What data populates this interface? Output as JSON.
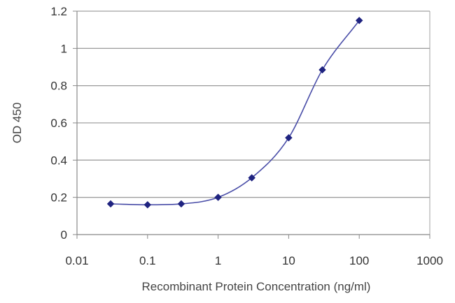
{
  "chart_data": {
    "type": "line",
    "title": "",
    "xlabel": "Recombinant Protein Concentration (ng/ml)",
    "ylabel": "OD 450",
    "x_scale": "log",
    "xlim": [
      0.01,
      1000
    ],
    "ylim": [
      0,
      1.2
    ],
    "x_ticks": [
      0.01,
      0.1,
      1,
      10,
      100,
      1000
    ],
    "x_tick_labels": [
      "0.01",
      "0.1",
      "1",
      "10",
      "100",
      "1000"
    ],
    "y_ticks": [
      0,
      0.2,
      0.4,
      0.6,
      0.8,
      1,
      1.2
    ],
    "y_tick_labels": [
      "0",
      "0.2",
      "0.4",
      "0.6",
      "0.8",
      "1",
      "1.2"
    ],
    "grid": "horizontal",
    "legend": "none",
    "series": [
      {
        "x": [
          0.03,
          0.1,
          0.3,
          1,
          3,
          10,
          30,
          100
        ],
        "y": [
          0.165,
          0.16,
          0.165,
          0.2,
          0.305,
          0.52,
          0.885,
          1.15
        ],
        "color": "#2b2f8f",
        "marker": "diamond"
      }
    ],
    "colors": {
      "line": "#4a4ea8",
      "marker": "#1f2380",
      "grid": "#a0a0a0",
      "axis": "#888888"
    }
  }
}
